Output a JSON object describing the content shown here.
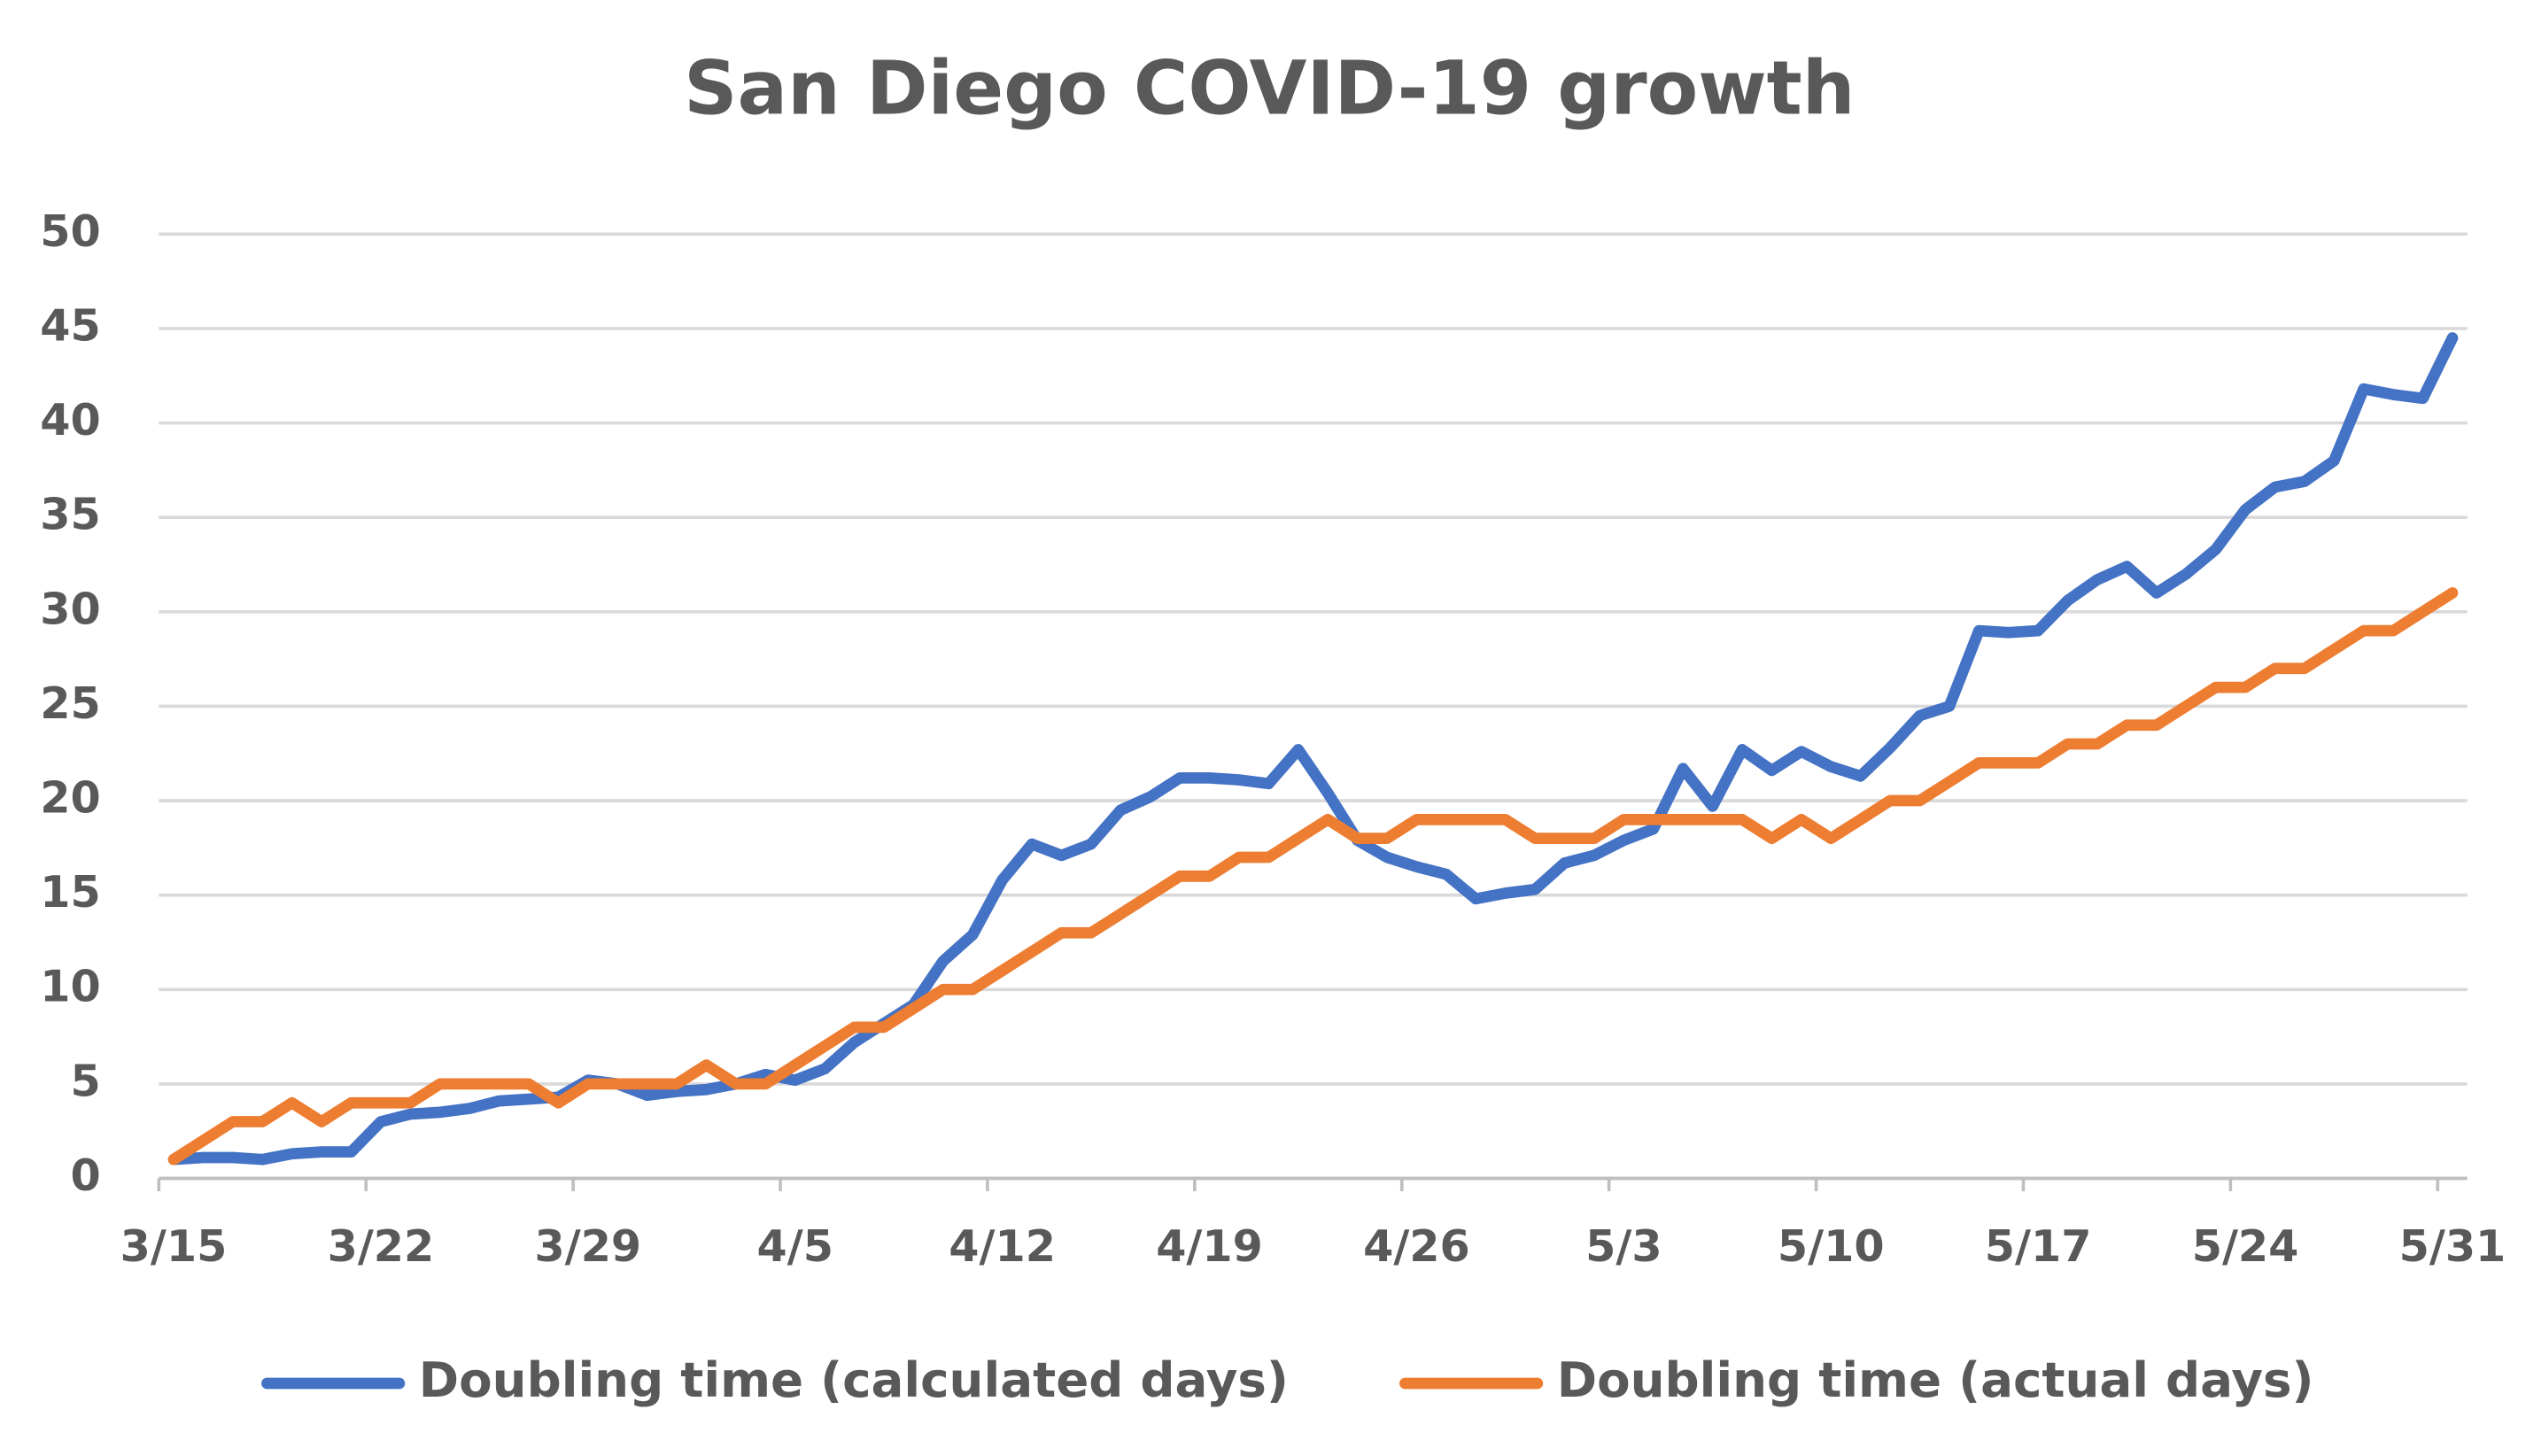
{
  "chart_data": {
    "type": "line",
    "title": "San Diego COVID-19 growth",
    "categories": [
      "3/15",
      null,
      null,
      null,
      null,
      null,
      null,
      "3/22",
      null,
      null,
      null,
      null,
      null,
      null,
      "3/29",
      null,
      null,
      null,
      null,
      null,
      null,
      "4/5",
      null,
      null,
      null,
      null,
      null,
      null,
      "4/12",
      null,
      null,
      null,
      null,
      null,
      null,
      "4/19",
      null,
      null,
      null,
      null,
      null,
      null,
      "4/26",
      null,
      null,
      null,
      null,
      null,
      null,
      "5/3",
      null,
      null,
      null,
      null,
      null,
      null,
      "5/10",
      null,
      null,
      null,
      null,
      null,
      null,
      "5/17",
      null,
      null,
      null,
      null,
      null,
      null,
      "5/24",
      null,
      null,
      null,
      null,
      null,
      null,
      "5/31"
    ],
    "series": [
      {
        "name": "Doubling time (calculated days)",
        "color": "#4472c4",
        "values": [
          1,
          1.1,
          1.1,
          1.0,
          1.3,
          1.4,
          1.4,
          3,
          3.4,
          3.5,
          3.7,
          4.1,
          4.2,
          4.3,
          5.2,
          5.0,
          4.4,
          4.6,
          4.7,
          5.0,
          5.5,
          5.2,
          5.8,
          7.2,
          8.2,
          9.2,
          11.5,
          12.9,
          15.8,
          17.7,
          17.1,
          17.7,
          19.5,
          20.2,
          21.2,
          21.2,
          21.1,
          20.9,
          22.7,
          20.4,
          17.9,
          17.0,
          16.5,
          16.1,
          14.8,
          15.1,
          15.3,
          16.7,
          17.1,
          17.9,
          18.5,
          21.7,
          19.7,
          22.7,
          21.6,
          22.6,
          21.8,
          21.3,
          22.8,
          24.5,
          25,
          29,
          28.9,
          29,
          30.6,
          31.7,
          32.4,
          31,
          32,
          33.3,
          35.4,
          36.6,
          36.9,
          38,
          41.8,
          41.5,
          41.3,
          44.5
        ]
      },
      {
        "name": "Doubling time (actual days)",
        "color": "#ed7d31",
        "values": [
          1,
          2,
          3,
          3,
          4,
          3,
          4,
          4,
          4,
          5,
          5,
          5,
          5,
          4,
          5,
          5,
          5,
          5,
          6,
          5,
          5,
          6,
          7,
          8,
          8,
          9,
          10,
          10,
          11,
          12,
          13,
          13,
          14,
          15,
          16,
          16,
          17,
          17,
          18,
          19,
          18,
          18,
          19,
          19,
          19,
          19,
          18,
          18,
          18,
          19,
          19,
          19,
          19,
          19,
          18,
          19,
          18,
          19,
          20,
          20,
          21,
          22,
          22,
          22,
          23,
          23,
          24,
          24,
          25,
          26,
          26,
          27,
          27,
          28,
          29,
          29,
          30,
          31
        ]
      }
    ],
    "ylim": [
      0,
      50
    ],
    "yticks": [
      0,
      5,
      10,
      15,
      20,
      25,
      30,
      35,
      40,
      45,
      50
    ],
    "grid": true,
    "legend": "bottom"
  }
}
